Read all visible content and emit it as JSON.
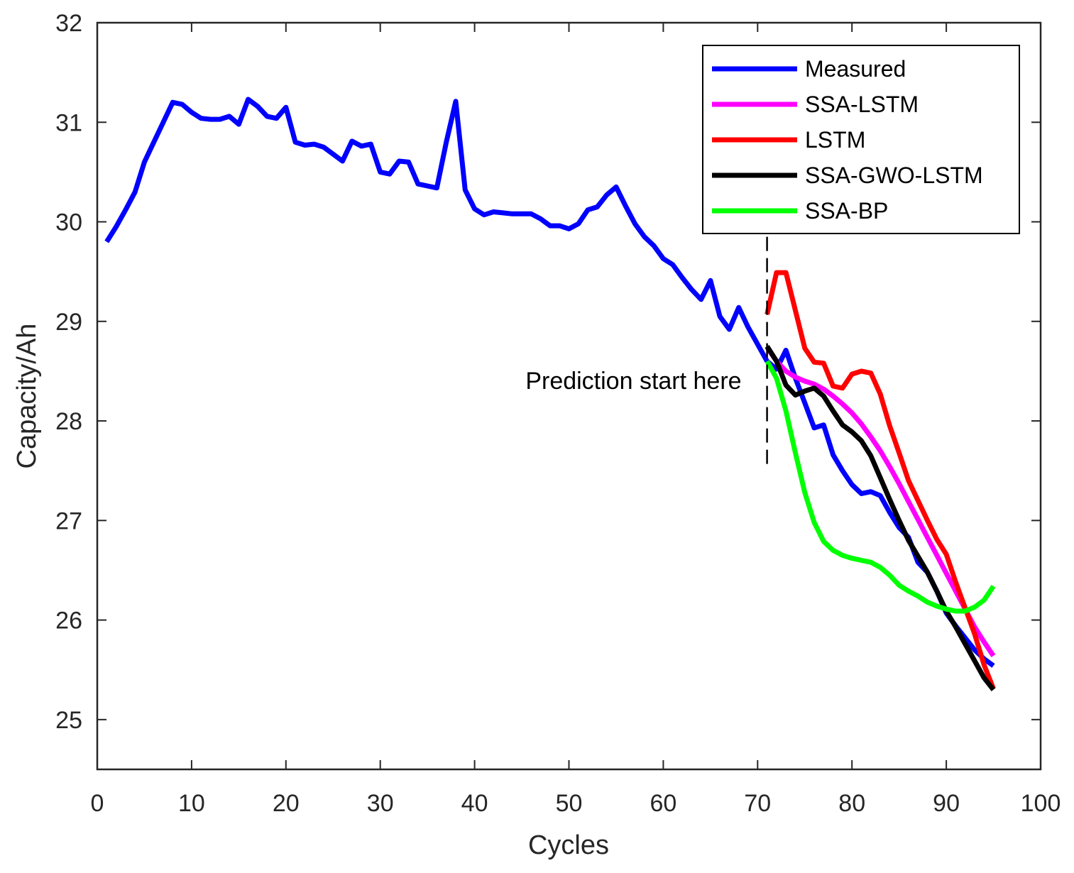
{
  "chart_data": {
    "type": "line",
    "title": "",
    "xlabel": "Cycles",
    "ylabel": "Capacity/Ah",
    "xlim": [
      0,
      100
    ],
    "ylim": [
      24.5,
      32
    ],
    "xticks": [
      0,
      10,
      20,
      30,
      40,
      50,
      60,
      70,
      80,
      90,
      100
    ],
    "yticks": [
      25,
      26,
      27,
      28,
      29,
      30,
      31,
      32
    ],
    "grid": false,
    "legend_position": "top-right",
    "annotation": {
      "text": "Prediction start here",
      "x": 71,
      "y_range": [
        27.5,
        29.85
      ]
    },
    "series": [
      {
        "name": "Measured",
        "color": "#0000ff",
        "x": [
          1,
          2,
          3,
          4,
          5,
          6,
          7,
          8,
          9,
          10,
          11,
          12,
          13,
          14,
          15,
          16,
          17,
          18,
          19,
          20,
          21,
          22,
          23,
          24,
          25,
          26,
          27,
          28,
          29,
          30,
          31,
          32,
          33,
          34,
          35,
          36,
          37,
          38,
          39,
          40,
          41,
          42,
          43,
          44,
          45,
          46,
          47,
          48,
          49,
          50,
          51,
          52,
          53,
          54,
          55,
          56,
          57,
          58,
          59,
          60,
          61,
          62,
          63,
          64,
          65,
          66,
          67,
          68,
          69,
          70,
          71,
          72,
          73,
          74,
          75,
          76,
          77,
          78,
          79,
          80,
          81,
          82,
          83,
          84,
          85,
          86,
          87,
          88,
          89,
          90,
          91,
          92,
          93,
          94,
          95
        ],
        "values": [
          29.8,
          29.95,
          30.12,
          30.3,
          30.6,
          30.8,
          31.0,
          31.2,
          31.18,
          31.1,
          31.04,
          31.03,
          31.03,
          31.06,
          30.98,
          31.23,
          31.16,
          31.06,
          31.04,
          31.15,
          30.8,
          30.77,
          30.78,
          30.75,
          30.68,
          30.61,
          30.81,
          30.76,
          30.78,
          30.5,
          30.48,
          30.61,
          30.6,
          30.38,
          30.36,
          30.34,
          30.8,
          31.21,
          30.32,
          30.13,
          30.07,
          30.1,
          30.09,
          30.08,
          30.08,
          30.08,
          30.03,
          29.96,
          29.96,
          29.93,
          29.98,
          30.12,
          30.15,
          30.27,
          30.35,
          30.16,
          29.98,
          29.85,
          29.76,
          29.63,
          29.57,
          29.44,
          29.32,
          29.22,
          29.41,
          29.05,
          28.92,
          29.14,
          28.94,
          28.77,
          28.6,
          28.52,
          28.71,
          28.43,
          28.18,
          27.93,
          27.96,
          27.66,
          27.5,
          27.36,
          27.27,
          27.29,
          27.25,
          27.08,
          26.93,
          26.83,
          26.58,
          26.48,
          26.29,
          26.07,
          25.94,
          25.82,
          25.7,
          25.61,
          25.54
        ]
      },
      {
        "name": "SSA-LSTM",
        "color": "#ff00ff",
        "x": [
          71,
          72,
          73,
          74,
          75,
          76,
          77,
          78,
          79,
          80,
          81,
          82,
          83,
          84,
          85,
          86,
          87,
          88,
          89,
          90,
          91,
          92,
          93,
          94,
          95
        ],
        "values": [
          28.74,
          28.6,
          28.5,
          28.44,
          28.4,
          28.37,
          28.32,
          28.25,
          28.17,
          28.08,
          27.97,
          27.84,
          27.7,
          27.54,
          27.37,
          27.19,
          27.01,
          26.83,
          26.65,
          26.47,
          26.29,
          26.11,
          25.93,
          25.78,
          25.64
        ]
      },
      {
        "name": "LSTM",
        "color": "#ff0000",
        "x": [
          71,
          72,
          73,
          74,
          75,
          76,
          77,
          78,
          79,
          80,
          81,
          82,
          83,
          84,
          85,
          86,
          87,
          88,
          89,
          90,
          91,
          92,
          93,
          94,
          95
        ],
        "values": [
          29.07,
          29.49,
          29.49,
          29.11,
          28.73,
          28.59,
          28.58,
          28.35,
          28.33,
          28.47,
          28.5,
          28.48,
          28.27,
          27.95,
          27.68,
          27.4,
          27.2,
          27.0,
          26.81,
          26.66,
          26.38,
          26.12,
          25.86,
          25.55,
          25.31
        ]
      },
      {
        "name": "SSA-GWO-LSTM",
        "color": "#000000",
        "x": [
          71,
          72,
          73,
          74,
          75,
          76,
          77,
          78,
          79,
          80,
          81,
          82,
          83,
          84,
          85,
          86,
          87,
          88,
          89,
          90,
          91,
          92,
          93,
          94,
          95
        ],
        "values": [
          28.75,
          28.6,
          28.36,
          28.26,
          28.3,
          28.33,
          28.25,
          28.1,
          27.96,
          27.89,
          27.8,
          27.65,
          27.43,
          27.21,
          27.0,
          26.8,
          26.64,
          26.48,
          26.29,
          26.09,
          25.93,
          25.76,
          25.59,
          25.42,
          25.3
        ]
      },
      {
        "name": "SSA-BP",
        "color": "#00ff00",
        "x": [
          71,
          72,
          73,
          74,
          75,
          76,
          77,
          78,
          79,
          80,
          81,
          82,
          83,
          84,
          85,
          86,
          87,
          88,
          89,
          90,
          91,
          92,
          93,
          94,
          95
        ],
        "values": [
          28.6,
          28.43,
          28.1,
          27.68,
          27.28,
          26.98,
          26.79,
          26.7,
          26.65,
          26.62,
          26.6,
          26.58,
          26.53,
          26.45,
          26.35,
          26.29,
          26.24,
          26.18,
          26.14,
          26.11,
          26.09,
          26.09,
          26.13,
          26.2,
          26.34
        ]
      }
    ]
  }
}
